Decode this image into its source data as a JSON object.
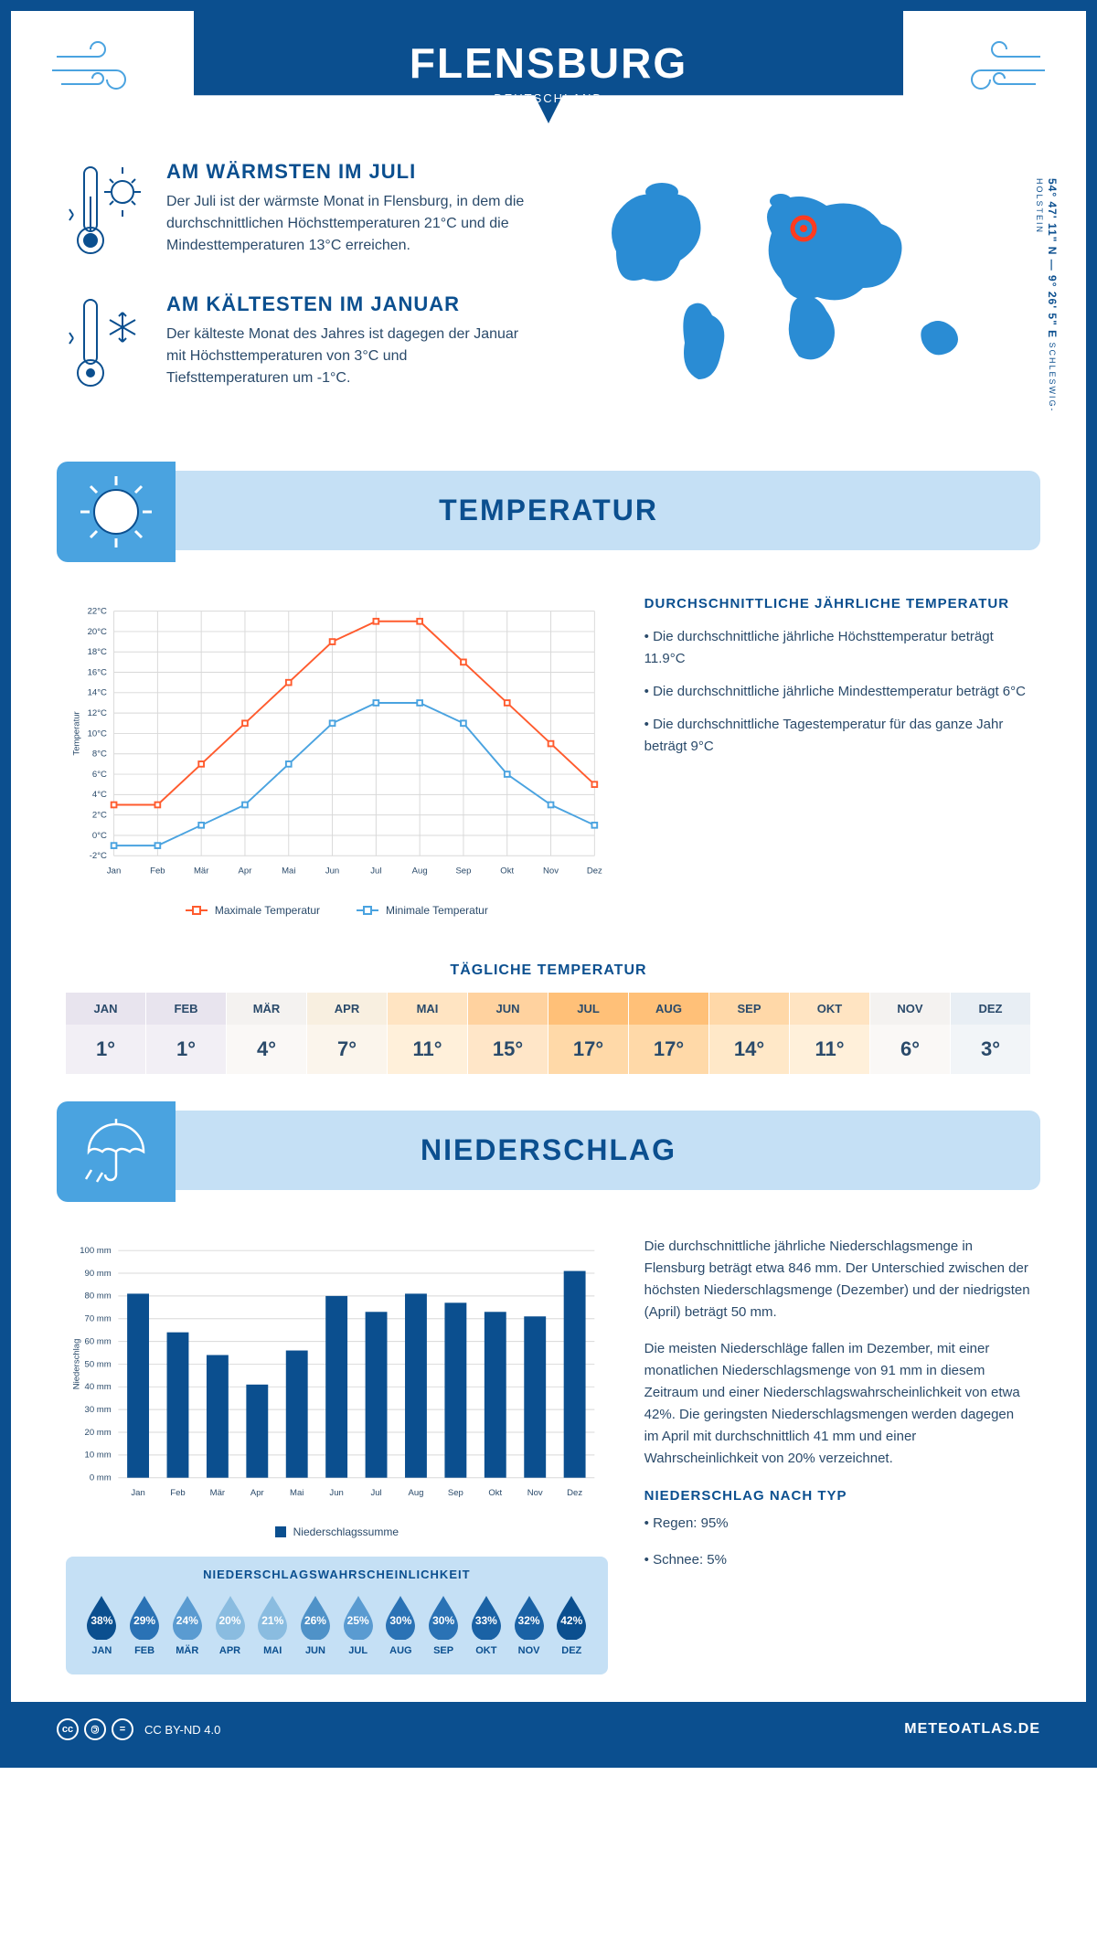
{
  "header": {
    "title": "FLENSBURG",
    "subtitle": "DEUTSCHLAND"
  },
  "coords": {
    "text": "54° 47' 11\" N — 9° 26' 5\" E",
    "region": "SCHLESWIG-HOLSTEIN"
  },
  "facts": {
    "warm": {
      "title": "AM WÄRMSTEN IM JULI",
      "body": "Der Juli ist der wärmste Monat in Flensburg, in dem die durchschnittlichen Höchsttemperaturen 21°C und die Mindesttemperaturen 13°C erreichen."
    },
    "cold": {
      "title": "AM KÄLTESTEN IM JANUAR",
      "body": "Der kälteste Monat des Jahres ist dagegen der Januar mit Höchsttemperaturen von 3°C und Tiefsttemperaturen um -1°C."
    }
  },
  "temperature": {
    "banner": "TEMPERATUR",
    "chart": {
      "type": "line",
      "months": [
        "Jan",
        "Feb",
        "Mär",
        "Apr",
        "Mai",
        "Jun",
        "Jul",
        "Aug",
        "Sep",
        "Okt",
        "Nov",
        "Dez"
      ],
      "max_series": {
        "label": "Maximale Temperatur",
        "color": "#ff5b2e",
        "values": [
          3,
          3,
          7,
          11,
          15,
          19,
          21,
          21,
          17,
          13,
          9,
          5
        ]
      },
      "min_series": {
        "label": "Minimale Temperatur",
        "color": "#4aa3e0",
        "values": [
          -1,
          -1,
          1,
          3,
          7,
          11,
          13,
          13,
          11,
          6,
          3,
          1
        ]
      },
      "yaxis_label": "Temperatur",
      "ymin": -2,
      "ymax": 22,
      "ystep": 2,
      "grid_color": "#d8d8d8",
      "background": "#ffffff",
      "line_width": 2,
      "marker": "square"
    },
    "text": {
      "heading": "DURCHSCHNITTLICHE JÄHRLICHE TEMPERATUR",
      "bullets": [
        "• Die durchschnittliche jährliche Höchsttemperatur beträgt 11.9°C",
        "• Die durchschnittliche jährliche Mindesttemperatur beträgt 6°C",
        "• Die durchschnittliche Tagestemperatur für das ganze Jahr beträgt 9°C"
      ]
    },
    "daily": {
      "title": "TÄGLICHE TEMPERATUR",
      "months": [
        "JAN",
        "FEB",
        "MÄR",
        "APR",
        "MAI",
        "JUN",
        "JUL",
        "AUG",
        "SEP",
        "OKT",
        "NOV",
        "DEZ"
      ],
      "values": [
        "1°",
        "1°",
        "4°",
        "7°",
        "11°",
        "15°",
        "17°",
        "17°",
        "14°",
        "11°",
        "6°",
        "3°"
      ],
      "header_colors": [
        "#e8e4ee",
        "#e8e4ee",
        "#f4f2f0",
        "#f8efe0",
        "#ffe4c2",
        "#ffd29f",
        "#ffc078",
        "#ffc078",
        "#ffd8a8",
        "#ffe4c2",
        "#f4f2f0",
        "#e8eef4"
      ],
      "value_colors": [
        "#f2eff5",
        "#f2eff5",
        "#faf8f6",
        "#fbf5ec",
        "#fff0da",
        "#ffe6c8",
        "#ffd9a8",
        "#ffd9a8",
        "#ffe8c8",
        "#fff0da",
        "#faf8f6",
        "#f2f5f8"
      ]
    }
  },
  "precipitation": {
    "banner": "NIEDERSCHLAG",
    "chart": {
      "type": "bar",
      "months": [
        "Jan",
        "Feb",
        "Mär",
        "Apr",
        "Mai",
        "Jun",
        "Jul",
        "Aug",
        "Sep",
        "Okt",
        "Nov",
        "Dez"
      ],
      "values": [
        81,
        64,
        54,
        41,
        56,
        80,
        73,
        81,
        77,
        73,
        71,
        91
      ],
      "bar_color": "#0b4f8f",
      "yaxis_label": "Niederschlag",
      "legend": "Niederschlagssumme",
      "ymin": 0,
      "ymax": 100,
      "ystep": 10,
      "grid_color": "#d8d8d8",
      "bar_width": 0.55
    },
    "text": {
      "p1": "Die durchschnittliche jährliche Niederschlagsmenge in Flensburg beträgt etwa 846 mm. Der Unterschied zwischen der höchsten Niederschlagsmenge (Dezember) und der niedrigsten (April) beträgt 50 mm.",
      "p2": "Die meisten Niederschläge fallen im Dezember, mit einer monatlichen Niederschlagsmenge von 91 mm in diesem Zeitraum und einer Niederschlagswahrscheinlichkeit von etwa 42%. Die geringsten Niederschlagsmengen werden dagegen im April mit durchschnittlich 41 mm und einer Wahrscheinlichkeit von 20% verzeichnet.",
      "type_heading": "NIEDERSCHLAG NACH TYP",
      "type_bullets": [
        "• Regen: 95%",
        "• Schnee: 5%"
      ]
    },
    "probability": {
      "title": "NIEDERSCHLAGSWAHRSCHEINLICHKEIT",
      "months": [
        "JAN",
        "FEB",
        "MÄR",
        "APR",
        "MAI",
        "JUN",
        "JUL",
        "AUG",
        "SEP",
        "OKT",
        "NOV",
        "DEZ"
      ],
      "values": [
        "38%",
        "29%",
        "24%",
        "20%",
        "21%",
        "26%",
        "25%",
        "30%",
        "30%",
        "33%",
        "32%",
        "42%"
      ],
      "colors": [
        "#0b4f8f",
        "#2a72b5",
        "#5a9bd1",
        "#8abce0",
        "#8abce0",
        "#4f92c8",
        "#5a9bd1",
        "#2a72b5",
        "#2a72b5",
        "#1a62a5",
        "#1a62a5",
        "#0b4f8f"
      ]
    }
  },
  "footer": {
    "license": "CC BY-ND 4.0",
    "site": "METEOATLAS.DE"
  },
  "colors": {
    "primary": "#0b4f8f",
    "light": "#c5e0f5",
    "accent": "#4aa3e0",
    "orange": "#ff5b2e"
  },
  "map": {
    "marker_color": "#ff3b1f",
    "land_color": "#2a8cd4"
  }
}
